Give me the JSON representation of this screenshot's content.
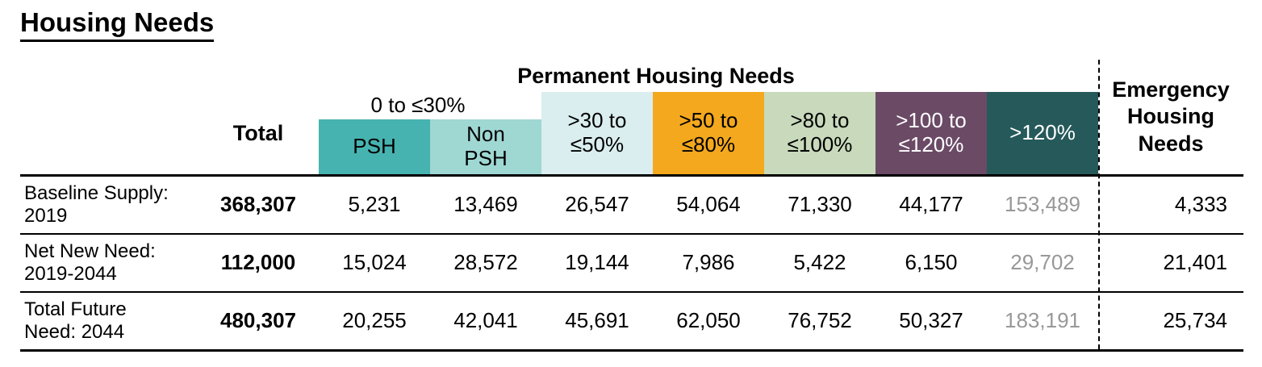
{
  "page": {
    "title": "Housing Needs"
  },
  "table": {
    "headers": {
      "permanent": "Permanent Housing Needs",
      "emergency": "Emergency\nHousing\nNeeds",
      "total": "Total",
      "band_0_30": "0 to ≤30%",
      "psh": "PSH",
      "non_psh": "Non\nPSH",
      "band_30_50": ">30 to\n≤50%",
      "band_50_80": ">50 to\n≤80%",
      "band_80_100": ">80 to\n≤100%",
      "band_100_120": ">100 to\n≤120%",
      "band_over_120": ">120%"
    },
    "rows": [
      {
        "label": "Baseline Supply:\n2019",
        "total": "368,307",
        "cells": [
          "5,231",
          "13,469",
          "26,547",
          "54,064",
          "71,330",
          "44,177",
          "153,489"
        ],
        "emergency": "4,333"
      },
      {
        "label": "Net New Need:\n2019-2044",
        "total": "112,000",
        "cells": [
          "15,024",
          "28,572",
          "19,144",
          "7,986",
          "5,422",
          "6,150",
          "29,702"
        ],
        "emergency": "21,401"
      },
      {
        "label": "Total Future\nNeed: 2044",
        "total": "480,307",
        "cells": [
          "20,255",
          "42,041",
          "45,691",
          "62,050",
          "76,752",
          "50,327",
          "183,191"
        ],
        "emergency": "25,734"
      }
    ]
  },
  "colors": {
    "psh": "#47B3B0",
    "non_psh": "#9FD7D3",
    "band_30_50": "#DAEDEF",
    "band_50_80": "#F4A81D",
    "band_80_100": "#C8DABB",
    "band_100_120": "#6B4A66",
    "band_over_120": "#26595A",
    "muted_value": "#989898"
  }
}
